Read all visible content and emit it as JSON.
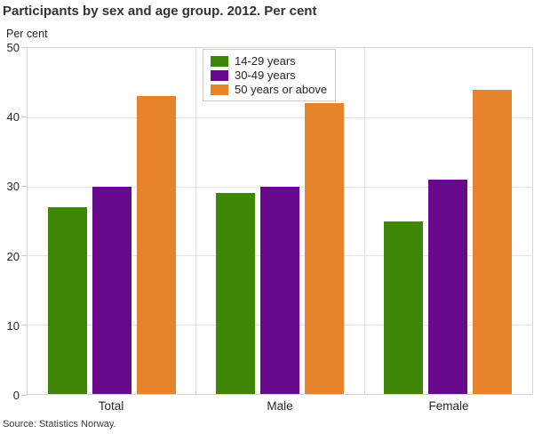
{
  "title": "Participants by sex and age group. 2012. Per cent",
  "source": "Source: Statistics Norway.",
  "chart_data": {
    "type": "bar",
    "title": "Participants by sex and age group. 2012. Per cent",
    "xlabel": "",
    "ylabel": "Per cent",
    "categories": [
      "Total",
      "Male",
      "Female"
    ],
    "series": [
      {
        "name": "14-29 years",
        "color": "#3f8608",
        "values": [
          27,
          29,
          25
        ]
      },
      {
        "name": "30-49 years",
        "color": "#690a8c",
        "values": [
          30,
          30,
          31
        ]
      },
      {
        "name": "50 years or above",
        "color": "#e8832d",
        "values": [
          43,
          42,
          44
        ]
      }
    ],
    "ylim": [
      0,
      50
    ],
    "ytick_step": 10,
    "grid": true,
    "legend_position": "top-inside"
  },
  "colors": {
    "grid": "#e4e4e4",
    "plot_border": "#d6d6d6",
    "tick": "#cccccc",
    "text": "#262626",
    "title": "#333333"
  }
}
